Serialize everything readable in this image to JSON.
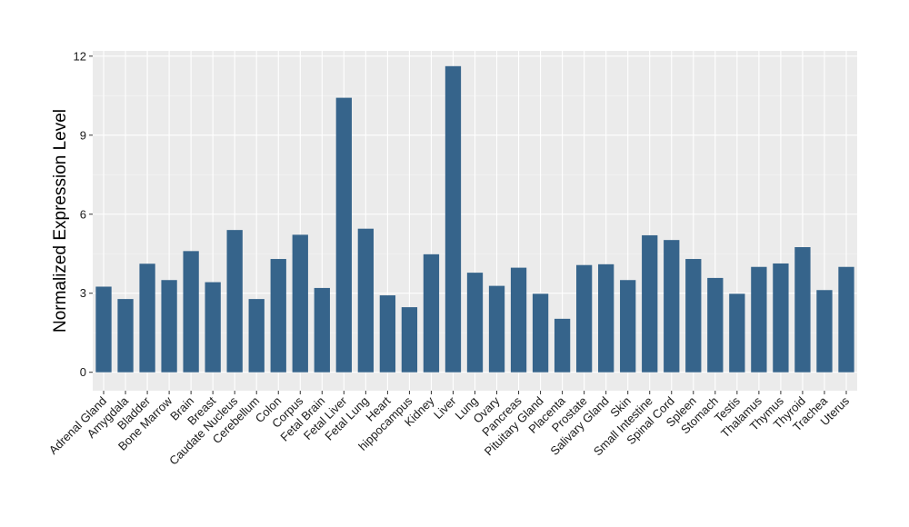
{
  "chart_data": {
    "type": "bar",
    "title": "",
    "xlabel": "",
    "ylabel": "Normalized Expression Level",
    "ylim": [
      -0.7,
      12.2
    ],
    "yticks": [
      0,
      3,
      6,
      9,
      12
    ],
    "grid": true,
    "legend": "none",
    "colors": {
      "bar": "#36648b",
      "panel_background": "#ebebeb",
      "grid_major": "#ffffff",
      "grid_minor": "#f5f5f5",
      "tick_text": "#1a1a1a",
      "axis_ticks": "#333333"
    },
    "categories": [
      "Adrenal Gland",
      "Amygdala",
      "Bladder",
      "Bone Marrow",
      "Brain",
      "Breast",
      "Caudate Nucleus",
      "Cerebellum",
      "Colon",
      "Corpus",
      "Fetal Brain",
      "Fetal Liver",
      "Fetal Lung",
      "Heart",
      "hippocampus",
      "Kidney",
      "Liver",
      "Lung",
      "Ovary",
      "Pancreas",
      "Pituitary Gland",
      "Placenta",
      "Prostate",
      "Salivary Gland",
      "Skin",
      "Small Intestine",
      "Spinal Cord",
      "Spleen",
      "Stomach",
      "Testis",
      "Thalamus",
      "Thymus",
      "Thyroid",
      "Trachea",
      "Uterus"
    ],
    "values": [
      3.25,
      2.78,
      4.12,
      3.5,
      4.6,
      3.42,
      5.4,
      2.78,
      4.3,
      5.22,
      3.2,
      10.42,
      5.45,
      2.92,
      2.47,
      4.48,
      11.62,
      3.78,
      3.28,
      3.97,
      2.98,
      2.03,
      4.07,
      4.1,
      3.5,
      5.2,
      5.02,
      4.3,
      3.58,
      2.98,
      4.0,
      4.13,
      4.75,
      3.12,
      4.0
    ]
  }
}
